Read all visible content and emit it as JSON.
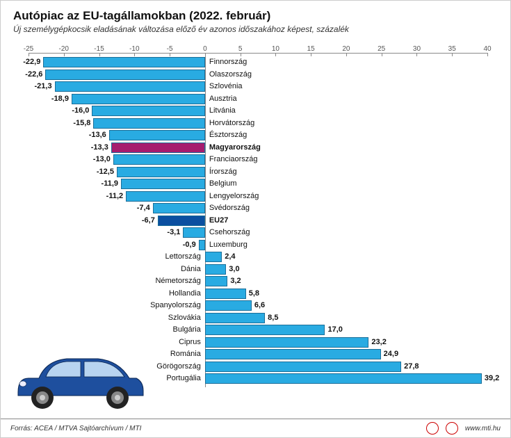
{
  "header": {
    "title": "Autópiac az EU-tagállamokban (2022. február)",
    "subtitle": "Új személygépkocsik eladásának változása előző év azonos időszakához képest, százalék"
  },
  "chart": {
    "type": "bar",
    "orientation": "horizontal",
    "xmin": -25,
    "xmax": 40,
    "xtick_step": 5,
    "background_color": "#ffffff",
    "axis_color": "#888888",
    "default_bar_color": "#29abe2",
    "bar_border_color": "#1a6e99",
    "rows": [
      {
        "label": "Finnország",
        "value": -22.9,
        "color": "#29abe2",
        "bold": false
      },
      {
        "label": "Olaszország",
        "value": -22.6,
        "color": "#29abe2",
        "bold": false
      },
      {
        "label": "Szlovénia",
        "value": -21.3,
        "color": "#29abe2",
        "bold": false
      },
      {
        "label": "Ausztria",
        "value": -18.9,
        "color": "#29abe2",
        "bold": false
      },
      {
        "label": "Litvánia",
        "value": -16.0,
        "color": "#29abe2",
        "bold": false
      },
      {
        "label": "Horvátország",
        "value": -15.8,
        "color": "#29abe2",
        "bold": false
      },
      {
        "label": "Észtország",
        "value": -13.6,
        "color": "#29abe2",
        "bold": false
      },
      {
        "label": "Magyarország",
        "value": -13.3,
        "color": "#a61c6e",
        "bold": true
      },
      {
        "label": "Franciaország",
        "value": -13.0,
        "color": "#29abe2",
        "bold": false
      },
      {
        "label": "Írország",
        "value": -12.5,
        "color": "#29abe2",
        "bold": false
      },
      {
        "label": "Belgium",
        "value": -11.9,
        "color": "#29abe2",
        "bold": false
      },
      {
        "label": "Lengyelország",
        "value": -11.2,
        "color": "#29abe2",
        "bold": false
      },
      {
        "label": "Svédország",
        "value": -7.4,
        "color": "#29abe2",
        "bold": false
      },
      {
        "label": "EU27",
        "value": -6.7,
        "color": "#0b4fa0",
        "bold": true
      },
      {
        "label": "Csehország",
        "value": -3.1,
        "color": "#29abe2",
        "bold": false
      },
      {
        "label": "Luxemburg",
        "value": -0.9,
        "color": "#29abe2",
        "bold": false
      },
      {
        "label": "Lettország",
        "value": 2.4,
        "color": "#29abe2",
        "bold": false
      },
      {
        "label": "Dánia",
        "value": 3.0,
        "color": "#29abe2",
        "bold": false
      },
      {
        "label": "Németország",
        "value": 3.2,
        "color": "#29abe2",
        "bold": false
      },
      {
        "label": "Hollandia",
        "value": 5.8,
        "color": "#29abe2",
        "bold": false
      },
      {
        "label": "Spanyolország",
        "value": 6.6,
        "color": "#29abe2",
        "bold": false
      },
      {
        "label": "Szlovákia",
        "value": 8.5,
        "color": "#29abe2",
        "bold": false
      },
      {
        "label": "Bulgária",
        "value": 17.0,
        "color": "#29abe2",
        "bold": false
      },
      {
        "label": "Ciprus",
        "value": 23.2,
        "color": "#29abe2",
        "bold": false
      },
      {
        "label": "Románia",
        "value": 24.9,
        "color": "#29abe2",
        "bold": false
      },
      {
        "label": "Görögország",
        "value": 27.8,
        "color": "#29abe2",
        "bold": false
      },
      {
        "label": "Portugália",
        "value": 39.2,
        "color": "#29abe2",
        "bold": false
      }
    ]
  },
  "car_illustration": {
    "body_color": "#1e4f9e",
    "window_color": "#b8d4f0",
    "wheel_color": "#222222"
  },
  "footer": {
    "source": "Forrás: ACEA / MTVA Sajtóarchívum / MTI",
    "site": "www.mti.hu"
  }
}
